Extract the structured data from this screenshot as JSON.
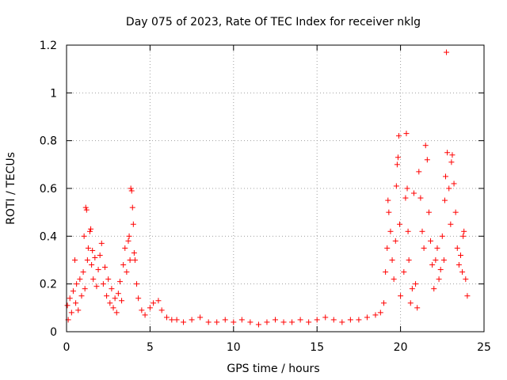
{
  "chart_data": {
    "type": "scatter",
    "title": "Day 075 of 2023, Rate Of TEC Index for receiver nklg",
    "xlabel": "GPS time / hours",
    "ylabel": "ROTI / TECUs",
    "xlim": [
      0,
      25
    ],
    "ylim": [
      0,
      1.2
    ],
    "xticks": [
      0,
      5,
      10,
      15,
      20,
      25
    ],
    "xtick_labels": [
      "0",
      "5",
      "10",
      "15",
      "20",
      "25"
    ],
    "yticks": [
      0,
      0.2,
      0.4,
      0.6,
      0.8,
      1.0,
      1.2
    ],
    "ytick_labels": [
      "0",
      "0.2",
      "0.4",
      "0.6",
      "0.8",
      "1",
      "1.2"
    ],
    "grid": true,
    "marker": "plus",
    "series": [
      {
        "name": "ROTI",
        "color": "#ff0000",
        "points": [
          [
            0.05,
            0.11
          ],
          [
            0.1,
            0.05
          ],
          [
            0.2,
            0.14
          ],
          [
            0.3,
            0.08
          ],
          [
            0.4,
            0.17
          ],
          [
            0.5,
            0.3
          ],
          [
            0.55,
            0.12
          ],
          [
            0.6,
            0.2
          ],
          [
            0.7,
            0.09
          ],
          [
            0.8,
            0.22
          ],
          [
            0.9,
            0.15
          ],
          [
            1.0,
            0.25
          ],
          [
            1.05,
            0.4
          ],
          [
            1.1,
            0.18
          ],
          [
            1.15,
            0.52
          ],
          [
            1.2,
            0.51
          ],
          [
            1.25,
            0.3
          ],
          [
            1.3,
            0.35
          ],
          [
            1.4,
            0.42
          ],
          [
            1.45,
            0.43
          ],
          [
            1.5,
            0.28
          ],
          [
            1.55,
            0.34
          ],
          [
            1.6,
            0.22
          ],
          [
            1.7,
            0.31
          ],
          [
            1.8,
            0.19
          ],
          [
            1.9,
            0.26
          ],
          [
            2.0,
            0.32
          ],
          [
            2.1,
            0.37
          ],
          [
            2.2,
            0.2
          ],
          [
            2.3,
            0.27
          ],
          [
            2.4,
            0.15
          ],
          [
            2.5,
            0.22
          ],
          [
            2.6,
            0.12
          ],
          [
            2.7,
            0.18
          ],
          [
            2.8,
            0.1
          ],
          [
            2.9,
            0.14
          ],
          [
            3.0,
            0.08
          ],
          [
            3.1,
            0.16
          ],
          [
            3.2,
            0.21
          ],
          [
            3.3,
            0.13
          ],
          [
            3.4,
            0.28
          ],
          [
            3.5,
            0.35
          ],
          [
            3.6,
            0.25
          ],
          [
            3.7,
            0.38
          ],
          [
            3.75,
            0.4
          ],
          [
            3.8,
            0.3
          ],
          [
            3.85,
            0.6
          ],
          [
            3.9,
            0.59
          ],
          [
            3.95,
            0.52
          ],
          [
            4.0,
            0.45
          ],
          [
            4.05,
            0.33
          ],
          [
            4.1,
            0.3
          ],
          [
            4.2,
            0.2
          ],
          [
            4.3,
            0.14
          ],
          [
            4.5,
            0.09
          ],
          [
            4.7,
            0.07
          ],
          [
            5.0,
            0.1
          ],
          [
            5.2,
            0.12
          ],
          [
            5.5,
            0.13
          ],
          [
            5.7,
            0.09
          ],
          [
            6.0,
            0.06
          ],
          [
            6.3,
            0.05
          ],
          [
            6.6,
            0.05
          ],
          [
            7.0,
            0.04
          ],
          [
            7.5,
            0.05
          ],
          [
            8.0,
            0.06
          ],
          [
            8.5,
            0.04
          ],
          [
            9.0,
            0.04
          ],
          [
            9.5,
            0.05
          ],
          [
            10.0,
            0.04
          ],
          [
            10.5,
            0.05
          ],
          [
            11.0,
            0.04
          ],
          [
            11.5,
            0.03
          ],
          [
            12.0,
            0.04
          ],
          [
            12.5,
            0.05
          ],
          [
            13.0,
            0.04
          ],
          [
            13.5,
            0.04
          ],
          [
            14.0,
            0.05
          ],
          [
            14.5,
            0.04
          ],
          [
            15.0,
            0.05
          ],
          [
            15.5,
            0.06
          ],
          [
            16.0,
            0.05
          ],
          [
            16.5,
            0.04
          ],
          [
            17.0,
            0.05
          ],
          [
            17.5,
            0.05
          ],
          [
            18.0,
            0.06
          ],
          [
            18.5,
            0.07
          ],
          [
            18.8,
            0.08
          ],
          [
            19.0,
            0.12
          ],
          [
            19.1,
            0.25
          ],
          [
            19.2,
            0.35
          ],
          [
            19.25,
            0.55
          ],
          [
            19.3,
            0.5
          ],
          [
            19.4,
            0.42
          ],
          [
            19.5,
            0.3
          ],
          [
            19.6,
            0.22
          ],
          [
            19.7,
            0.38
          ],
          [
            19.75,
            0.61
          ],
          [
            19.8,
            0.7
          ],
          [
            19.85,
            0.73
          ],
          [
            19.9,
            0.82
          ],
          [
            19.95,
            0.45
          ],
          [
            20.0,
            0.15
          ],
          [
            20.2,
            0.25
          ],
          [
            20.3,
            0.56
          ],
          [
            20.35,
            0.83
          ],
          [
            20.4,
            0.6
          ],
          [
            20.45,
            0.42
          ],
          [
            20.5,
            0.3
          ],
          [
            20.6,
            0.12
          ],
          [
            20.7,
            0.18
          ],
          [
            20.8,
            0.58
          ],
          [
            20.9,
            0.2
          ],
          [
            21.0,
            0.1
          ],
          [
            21.1,
            0.67
          ],
          [
            21.2,
            0.56
          ],
          [
            21.3,
            0.42
          ],
          [
            21.4,
            0.35
          ],
          [
            21.5,
            0.78
          ],
          [
            21.6,
            0.72
          ],
          [
            21.7,
            0.5
          ],
          [
            21.8,
            0.38
          ],
          [
            21.9,
            0.28
          ],
          [
            22.0,
            0.18
          ],
          [
            22.1,
            0.3
          ],
          [
            22.2,
            0.35
          ],
          [
            22.3,
            0.22
          ],
          [
            22.4,
            0.26
          ],
          [
            22.5,
            0.4
          ],
          [
            22.6,
            0.3
          ],
          [
            22.65,
            0.55
          ],
          [
            22.7,
            0.65
          ],
          [
            22.75,
            1.17
          ],
          [
            22.8,
            0.75
          ],
          [
            22.9,
            0.6
          ],
          [
            23.0,
            0.45
          ],
          [
            23.05,
            0.71
          ],
          [
            23.1,
            0.74
          ],
          [
            23.2,
            0.62
          ],
          [
            23.3,
            0.5
          ],
          [
            23.4,
            0.35
          ],
          [
            23.5,
            0.28
          ],
          [
            23.6,
            0.32
          ],
          [
            23.7,
            0.25
          ],
          [
            23.75,
            0.4
          ],
          [
            23.8,
            0.42
          ],
          [
            23.9,
            0.22
          ],
          [
            24.0,
            0.15
          ]
        ]
      }
    ]
  }
}
